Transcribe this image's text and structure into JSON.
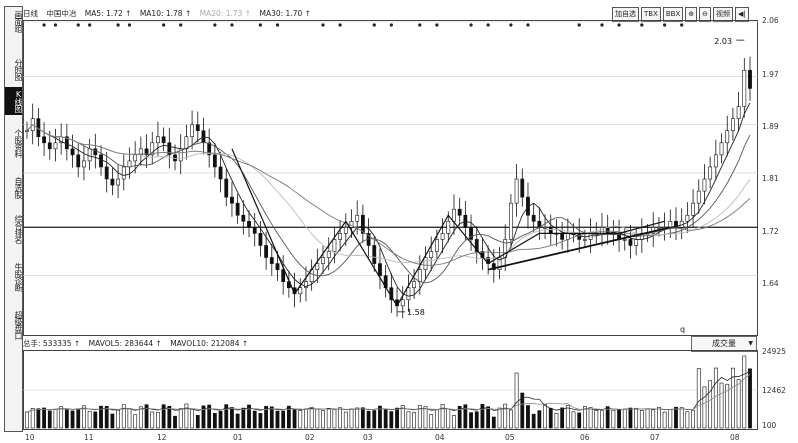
{
  "sidebar": {
    "items": [
      {
        "label": "画面组"
      },
      {
        "label": "分时图"
      },
      {
        "label": "K线图"
      },
      {
        "label": "个股资料"
      },
      {
        "label": "自选股"
      },
      {
        "label": "综合排名"
      },
      {
        "label": "牛股诊断"
      },
      {
        "label": "超级盘口"
      }
    ]
  },
  "topbar": {
    "period": "日线",
    "stock": "中国中冶",
    "ma5": "MA5: 1.72 ↑",
    "ma10": "MA10: 1.78 ↑",
    "ma20": "MA20: 1.73 ↑",
    "ma30": "MA30: 1.70 ↑",
    "buttons": [
      "加自选",
      "TBX",
      "BBX",
      "⊕",
      "⊖",
      "视频",
      "◀|"
    ]
  },
  "price_axis": {
    "labels": [
      "2.06",
      "1.97",
      "1.89",
      "1.81",
      "1.72",
      "1.64"
    ]
  },
  "annotations": {
    "high": "2.03",
    "low": "1.58",
    "q": "q"
  },
  "volume": {
    "vol": "总手: 533335 ↑",
    "mavol5": "MAVOL5: 283644 ↑",
    "mavol10": "MAVOL10: 212084 ↑",
    "axis_labels": [
      "24925",
      "12462",
      "100"
    ],
    "period_label": "成交量"
  },
  "time_axis": {
    "labels": [
      "10",
      "11",
      "12",
      "01",
      "02",
      "03",
      "04",
      "05",
      "06",
      "07",
      "08"
    ]
  },
  "colors": {
    "ma5": "#222222",
    "ma10": "#555555",
    "ma20": "#bbbbbb",
    "ma30": "#777777"
  },
  "chart_data": {
    "type": "candlestick",
    "ylim": [
      1.55,
      2.06
    ],
    "closes": [
      1.88,
      1.9,
      1.87,
      1.86,
      1.85,
      1.86,
      1.87,
      1.85,
      1.84,
      1.82,
      1.83,
      1.85,
      1.84,
      1.82,
      1.8,
      1.79,
      1.8,
      1.82,
      1.83,
      1.84,
      1.85,
      1.84,
      1.86,
      1.87,
      1.86,
      1.84,
      1.83,
      1.85,
      1.87,
      1.89,
      1.88,
      1.86,
      1.84,
      1.82,
      1.8,
      1.77,
      1.76,
      1.74,
      1.73,
      1.72,
      1.71,
      1.69,
      1.67,
      1.66,
      1.65,
      1.63,
      1.62,
      1.61,
      1.62,
      1.63,
      1.65,
      1.66,
      1.67,
      1.68,
      1.7,
      1.71,
      1.72,
      1.73,
      1.74,
      1.71,
      1.69,
      1.66,
      1.64,
      1.62,
      1.6,
      1.59,
      1.6,
      1.62,
      1.63,
      1.65,
      1.67,
      1.68,
      1.7,
      1.71,
      1.73,
      1.75,
      1.74,
      1.72,
      1.7,
      1.68,
      1.67,
      1.66,
      1.65,
      1.67,
      1.7,
      1.76,
      1.8,
      1.77,
      1.74,
      1.73,
      1.72,
      1.72,
      1.71,
      1.71,
      1.7,
      1.71,
      1.71,
      1.7,
      1.7,
      1.71,
      1.71,
      1.72,
      1.71,
      1.71,
      1.7,
      1.7,
      1.69,
      1.7,
      1.71,
      1.71,
      1.72,
      1.72,
      1.72,
      1.73,
      1.72,
      1.73,
      1.74,
      1.76,
      1.78,
      1.8,
      1.82,
      1.84,
      1.86,
      1.88,
      1.9,
      1.92,
      1.98,
      1.95
    ]
  }
}
